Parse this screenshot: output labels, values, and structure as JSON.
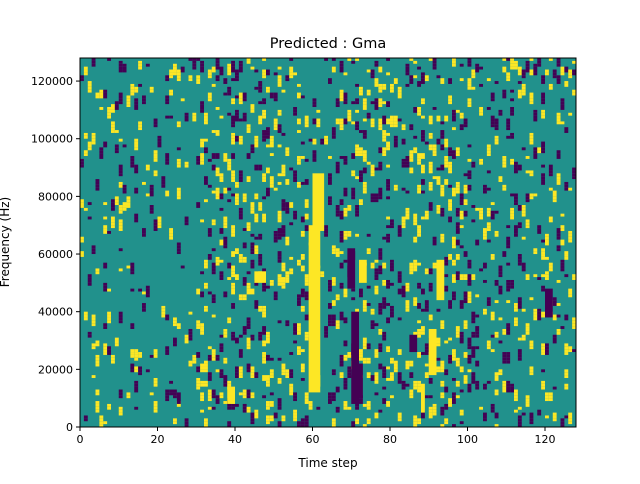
{
  "chart_data": {
    "type": "heatmap",
    "title": "Predicted : Gma",
    "xlabel": "Time step",
    "ylabel": "Frequency (Hz)",
    "xlim": [
      0,
      128
    ],
    "ylim": [
      0,
      128000
    ],
    "x_ticks": [
      0,
      20,
      40,
      60,
      80,
      100,
      120
    ],
    "y_ticks": [
      0,
      20000,
      40000,
      60000,
      80000,
      100000,
      120000
    ],
    "n_time_steps": 128,
    "n_freq_bins": 128,
    "values_levels": [
      -1,
      0,
      1
    ],
    "colormap": {
      "-1": "#440154",
      "0": "#21918c",
      "1": "#fde725"
    },
    "background_value": 0,
    "cells": [
      {
        "t": [
          59,
          62
        ],
        "f": [
          0,
          128000
        ],
        "fmin": 12000,
        "fmax": 70000,
        "v": 1
      },
      {
        "t": [
          60,
          63
        ],
        "f": [
          68000,
          88000
        ],
        "v": 1
      },
      {
        "t": [
          70,
          72
        ],
        "f": [
          8000,
          40000
        ],
        "v": -1
      },
      {
        "t": [
          72,
          73
        ],
        "f": [
          10000,
          22000
        ],
        "v": -1
      },
      {
        "t": [
          69,
          71
        ],
        "f": [
          48000,
          62000
        ],
        "v": -1
      },
      {
        "t": [
          90,
          92
        ],
        "f": [
          18000,
          34000
        ],
        "v": 1
      },
      {
        "t": [
          92,
          94
        ],
        "f": [
          44000,
          58000
        ],
        "v": 1
      },
      {
        "t": [
          88,
          89
        ],
        "f": [
          5000,
          15000
        ],
        "v": 1
      },
      {
        "t": [
          85,
          87
        ],
        "f": [
          26000,
          32000
        ],
        "v": -1
      },
      {
        "t": [
          72,
          74
        ],
        "f": [
          50000,
          58000
        ],
        "v": 1
      },
      {
        "t": [
          45,
          48
        ],
        "f": [
          50000,
          54000
        ],
        "v": 1
      },
      {
        "t": [
          38,
          40
        ],
        "f": [
          8000,
          14000
        ],
        "v": 1
      },
      {
        "t": [
          25,
          26
        ],
        "f": [
          8000,
          12000
        ],
        "v": -1
      },
      {
        "t": [
          120,
          122
        ],
        "f": [
          38000,
          48000
        ],
        "v": -1
      }
    ]
  }
}
